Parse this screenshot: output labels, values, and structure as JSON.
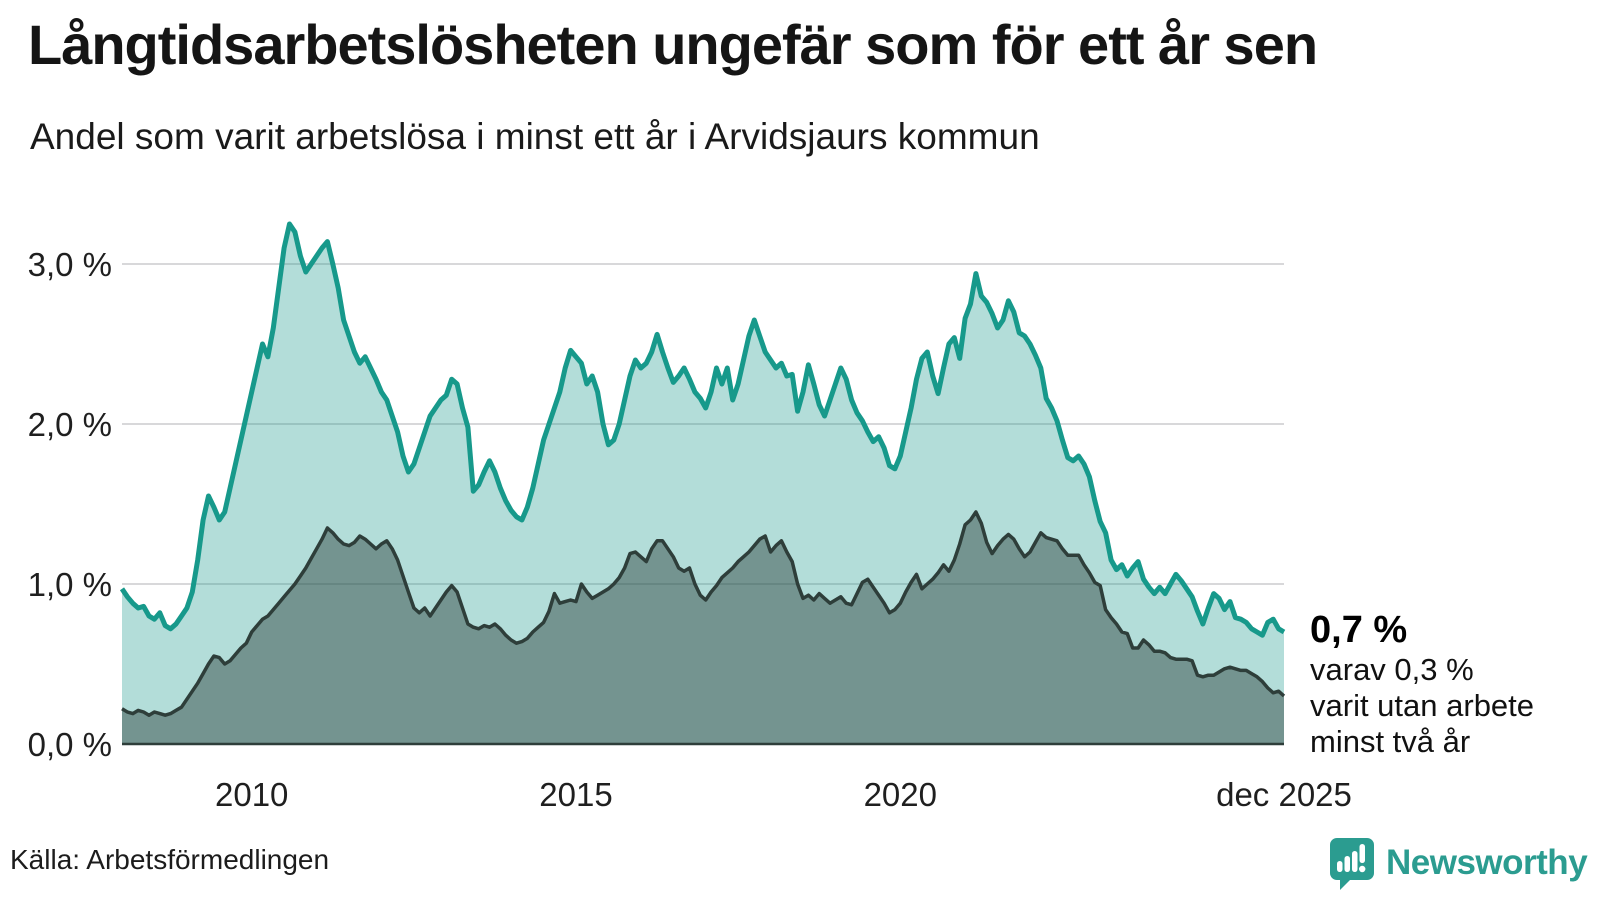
{
  "header": {
    "title": "Långtidsarbetslösheten ungefär som för ett år sen",
    "subtitle": "Andel som varit arbetslösa i minst ett år i Arvidsjaurs kommun"
  },
  "chart_data": {
    "type": "area",
    "title": "Långtidsarbetslösheten ungefär som för ett år sen",
    "subtitle": "Andel som varit arbetslösa i minst ett år i Arvidsjaurs kommun",
    "unit": "%",
    "frequency": "monthly",
    "x_start": "2008-01",
    "x_end": "2025-12",
    "ylim": [
      0,
      3.4
    ],
    "grid": true,
    "grid_color": "#d8d8da",
    "axis_color": "#2e3e3a",
    "legend_position": "none",
    "yticks": [
      {
        "value": 0,
        "label": "0,0 %"
      },
      {
        "value": 1,
        "label": "1,0 %"
      },
      {
        "value": 2,
        "label": "2,0 %"
      },
      {
        "value": 3,
        "label": "3,0 %"
      }
    ],
    "xticks": [
      {
        "label": "2010",
        "month_index": 24
      },
      {
        "label": "2015",
        "month_index": 84
      },
      {
        "label": "2020",
        "month_index": 144
      },
      {
        "label": "dec 2025",
        "month_index": 215
      }
    ],
    "series": [
      {
        "name": "Arbetslösa minst ett år",
        "color": "#17998b",
        "fill": "rgba(23,153,139,0.33)",
        "width": 5,
        "values": [
          0.97,
          0.92,
          0.88,
          0.85,
          0.86,
          0.8,
          0.78,
          0.82,
          0.74,
          0.72,
          0.75,
          0.8,
          0.85,
          0.95,
          1.15,
          1.4,
          1.55,
          1.48,
          1.4,
          1.45,
          1.6,
          1.75,
          1.9,
          2.05,
          2.2,
          2.35,
          2.5,
          2.42,
          2.6,
          2.85,
          3.1,
          3.25,
          3.2,
          3.05,
          2.95,
          3.0,
          3.05,
          3.1,
          3.14,
          3.0,
          2.85,
          2.65,
          2.55,
          2.45,
          2.38,
          2.42,
          2.35,
          2.28,
          2.2,
          2.15,
          2.05,
          1.95,
          1.8,
          1.7,
          1.75,
          1.85,
          1.95,
          2.05,
          2.1,
          2.15,
          2.18,
          2.28,
          2.25,
          2.1,
          1.98,
          1.58,
          1.62,
          1.7,
          1.77,
          1.7,
          1.6,
          1.52,
          1.46,
          1.42,
          1.4,
          1.48,
          1.6,
          1.75,
          1.9,
          2.0,
          2.1,
          2.2,
          2.35,
          2.46,
          2.42,
          2.38,
          2.25,
          2.3,
          2.2,
          2.0,
          1.87,
          1.9,
          2.0,
          2.15,
          2.3,
          2.4,
          2.35,
          2.38,
          2.45,
          2.56,
          2.45,
          2.35,
          2.26,
          2.3,
          2.35,
          2.28,
          2.2,
          2.16,
          2.1,
          2.2,
          2.35,
          2.25,
          2.35,
          2.15,
          2.25,
          2.4,
          2.55,
          2.65,
          2.55,
          2.45,
          2.4,
          2.35,
          2.38,
          2.3,
          2.31,
          2.08,
          2.2,
          2.37,
          2.25,
          2.12,
          2.05,
          2.15,
          2.25,
          2.35,
          2.28,
          2.15,
          2.07,
          2.02,
          1.95,
          1.89,
          1.92,
          1.85,
          1.74,
          1.72,
          1.8,
          1.95,
          2.1,
          2.28,
          2.41,
          2.45,
          2.3,
          2.19,
          2.35,
          2.5,
          2.54,
          2.41,
          2.66,
          2.75,
          2.94,
          2.8,
          2.76,
          2.69,
          2.6,
          2.65,
          2.77,
          2.7,
          2.57,
          2.55,
          2.5,
          2.43,
          2.35,
          2.16,
          2.1,
          2.02,
          1.9,
          1.79,
          1.77,
          1.8,
          1.75,
          1.67,
          1.52,
          1.39,
          1.32,
          1.15,
          1.09,
          1.12,
          1.05,
          1.1,
          1.14,
          1.03,
          0.98,
          0.94,
          0.98,
          0.94,
          1.0,
          1.06,
          1.02,
          0.97,
          0.92,
          0.83,
          0.75,
          0.85,
          0.94,
          0.91,
          0.84,
          0.89,
          0.79,
          0.78,
          0.76,
          0.72,
          0.7,
          0.68,
          0.76,
          0.78,
          0.72,
          0.7
        ]
      },
      {
        "name": "Arbetslösa minst två år",
        "color": "#2e3e3a",
        "fill": "rgba(40,60,55,0.45)",
        "width": 3.5,
        "values": [
          0.22,
          0.2,
          0.19,
          0.21,
          0.2,
          0.18,
          0.2,
          0.19,
          0.18,
          0.19,
          0.21,
          0.23,
          0.28,
          0.33,
          0.38,
          0.44,
          0.5,
          0.55,
          0.54,
          0.5,
          0.52,
          0.56,
          0.6,
          0.63,
          0.7,
          0.74,
          0.78,
          0.8,
          0.84,
          0.88,
          0.92,
          0.96,
          1.0,
          1.05,
          1.1,
          1.16,
          1.22,
          1.28,
          1.35,
          1.32,
          1.28,
          1.25,
          1.24,
          1.26,
          1.3,
          1.28,
          1.25,
          1.22,
          1.25,
          1.27,
          1.22,
          1.15,
          1.05,
          0.95,
          0.85,
          0.82,
          0.85,
          0.8,
          0.85,
          0.9,
          0.95,
          0.99,
          0.95,
          0.85,
          0.75,
          0.73,
          0.72,
          0.74,
          0.73,
          0.75,
          0.72,
          0.68,
          0.65,
          0.63,
          0.64,
          0.66,
          0.7,
          0.73,
          0.76,
          0.83,
          0.94,
          0.88,
          0.89,
          0.9,
          0.89,
          1.0,
          0.95,
          0.91,
          0.93,
          0.95,
          0.97,
          1.0,
          1.04,
          1.1,
          1.19,
          1.2,
          1.17,
          1.14,
          1.22,
          1.27,
          1.27,
          1.22,
          1.17,
          1.1,
          1.08,
          1.1,
          1.0,
          0.93,
          0.9,
          0.95,
          0.99,
          1.04,
          1.07,
          1.1,
          1.14,
          1.17,
          1.2,
          1.24,
          1.28,
          1.3,
          1.2,
          1.24,
          1.27,
          1.2,
          1.14,
          1.0,
          0.91,
          0.93,
          0.9,
          0.94,
          0.91,
          0.88,
          0.9,
          0.92,
          0.88,
          0.87,
          0.94,
          1.01,
          1.03,
          0.98,
          0.93,
          0.88,
          0.82,
          0.84,
          0.88,
          0.95,
          1.01,
          1.06,
          0.97,
          1.0,
          1.03,
          1.07,
          1.12,
          1.08,
          1.15,
          1.25,
          1.37,
          1.4,
          1.45,
          1.38,
          1.26,
          1.19,
          1.24,
          1.28,
          1.31,
          1.28,
          1.22,
          1.17,
          1.2,
          1.26,
          1.32,
          1.29,
          1.28,
          1.27,
          1.22,
          1.18,
          1.18,
          1.18,
          1.12,
          1.07,
          1.01,
          0.99,
          0.84,
          0.79,
          0.75,
          0.7,
          0.69,
          0.6,
          0.6,
          0.65,
          0.62,
          0.58,
          0.58,
          0.57,
          0.54,
          0.53,
          0.53,
          0.53,
          0.52,
          0.43,
          0.42,
          0.43,
          0.43,
          0.45,
          0.47,
          0.48,
          0.47,
          0.46,
          0.46,
          0.44,
          0.42,
          0.39,
          0.35,
          0.32,
          0.33,
          0.3
        ]
      }
    ]
  },
  "annotation": {
    "value_label": "0,7 %",
    "lines": [
      "varav 0,3 %",
      "varit utan arbete",
      "minst två år"
    ]
  },
  "footer": {
    "source": "Källa: Arbetsförmedlingen",
    "brand": "Newsworthy"
  },
  "colors": {
    "accent_teal": "#17998b",
    "dark_series": "#2e3e3a",
    "brand_teal": "#2b9c90",
    "grid": "#d8d8da"
  }
}
